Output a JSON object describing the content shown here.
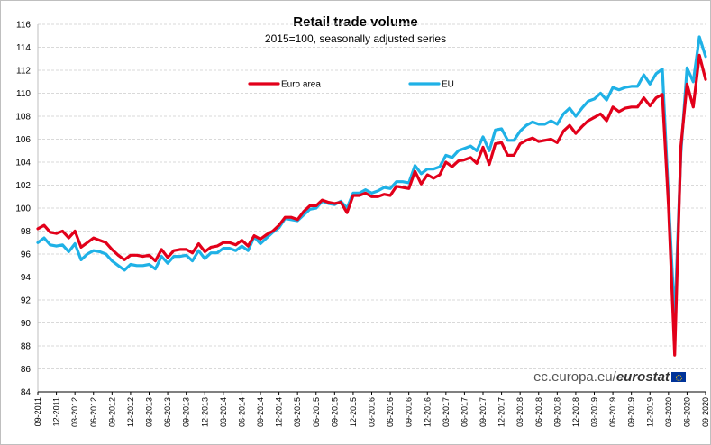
{
  "chart_data": {
    "type": "line",
    "title": "Retail trade volume",
    "subtitle": "2015=100, seasonally adjusted series",
    "ylim": [
      84,
      116
    ],
    "yticks": [
      84,
      86,
      88,
      90,
      92,
      94,
      96,
      98,
      100,
      102,
      104,
      106,
      108,
      110,
      112,
      114,
      116
    ],
    "xtick_labels": [
      "09-2011",
      "12-2011",
      "03-2012",
      "06-2012",
      "09-2012",
      "12-2012",
      "03-2013",
      "06-2013",
      "09-2013",
      "12-2013",
      "03-2014",
      "06-2014",
      "09-2014",
      "12-2014",
      "03-2015",
      "06-2015",
      "09-2015",
      "12-2015",
      "03-2016",
      "06-2016",
      "09-2016",
      "12-2016",
      "03-2017",
      "06-2017",
      "09-2017",
      "12-2017",
      "03-2018",
      "06-2018",
      "09-2018",
      "12-2018",
      "03-2019",
      "06-2019",
      "09-2019",
      "12-2019",
      "03-2020",
      "06-2020",
      "09-2020"
    ],
    "series": [
      {
        "name": "Euro area",
        "color": "#e2001a",
        "values": [
          98.2,
          98.5,
          97.9,
          97.8,
          98.0,
          97.4,
          98.0,
          96.6,
          97.0,
          97.4,
          97.2,
          97.0,
          96.4,
          95.9,
          95.5,
          95.9,
          95.9,
          95.8,
          95.9,
          95.4,
          96.4,
          95.7,
          96.3,
          96.4,
          96.4,
          96.1,
          96.9,
          96.2,
          96.6,
          96.7,
          97.0,
          97.0,
          96.8,
          97.2,
          96.7,
          97.6,
          97.3,
          97.7,
          98.0,
          98.5,
          99.2,
          99.2,
          99.0,
          99.7,
          100.2,
          100.2,
          100.7,
          100.5,
          100.4,
          100.5,
          99.6,
          101.1,
          101.1,
          101.3,
          101.0,
          101.0,
          101.2,
          101.1,
          101.9,
          101.8,
          101.7,
          103.2,
          102.1,
          102.9,
          102.6,
          102.9,
          104.0,
          103.6,
          104.1,
          104.2,
          104.4,
          103.9,
          105.3,
          103.8,
          105.6,
          105.7,
          104.6,
          104.6,
          105.6,
          105.9,
          106.1,
          105.8,
          105.9,
          106.0,
          105.7,
          106.7,
          107.2,
          106.5,
          107.1,
          107.6,
          107.9,
          108.2,
          107.6,
          108.8,
          108.4,
          108.7,
          108.8,
          108.8,
          109.6,
          108.9,
          109.6,
          109.9,
          100.2,
          87.2,
          105.4,
          110.8,
          108.8,
          113.3,
          111.2
        ]
      },
      {
        "name": "EU",
        "color": "#1fb1e6",
        "values": [
          97.0,
          97.4,
          96.8,
          96.7,
          96.8,
          96.2,
          96.9,
          95.5,
          96.0,
          96.3,
          96.2,
          96.0,
          95.4,
          95.0,
          94.6,
          95.1,
          95.0,
          95.0,
          95.1,
          94.7,
          95.8,
          95.2,
          95.8,
          95.8,
          95.9,
          95.4,
          96.3,
          95.6,
          96.1,
          96.1,
          96.5,
          96.5,
          96.3,
          96.7,
          96.3,
          97.5,
          96.9,
          97.4,
          97.9,
          98.3,
          99.1,
          99.0,
          98.9,
          99.4,
          99.9,
          100.0,
          100.6,
          100.4,
          100.3,
          100.6,
          100.0,
          101.3,
          101.3,
          101.6,
          101.3,
          101.5,
          101.8,
          101.7,
          102.3,
          102.3,
          102.2,
          103.7,
          103.0,
          103.4,
          103.4,
          103.6,
          104.6,
          104.4,
          105.0,
          105.2,
          105.4,
          105.0,
          106.2,
          105.0,
          106.8,
          106.9,
          105.9,
          105.9,
          106.7,
          107.2,
          107.5,
          107.3,
          107.3,
          107.6,
          107.3,
          108.2,
          108.7,
          108.0,
          108.7,
          109.3,
          109.5,
          110.0,
          109.4,
          110.5,
          110.3,
          110.5,
          110.6,
          110.6,
          111.6,
          110.8,
          111.7,
          112.1,
          101.0,
          90.2,
          104.8,
          112.2,
          111.0,
          114.9,
          113.2
        ]
      }
    ]
  },
  "source": {
    "prefix": "ec.europa.eu/",
    "brand": "eurostat"
  }
}
